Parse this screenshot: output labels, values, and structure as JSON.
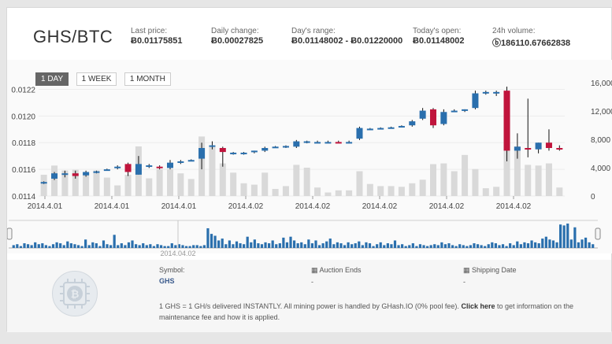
{
  "header": {
    "pair": "GHS/BTC",
    "stats": [
      {
        "label": "Last price:",
        "value": "Ƀ0.01175851"
      },
      {
        "label": "Daily change:",
        "value": "Ƀ0.00027825"
      },
      {
        "label": "Day's range:",
        "value": "Ƀ0.01148002 - Ƀ0.01220000"
      },
      {
        "label": "Today's open:",
        "value": "Ƀ0.01148002"
      },
      {
        "label": "24h volume:",
        "value": "ⓑ186110.67662838"
      }
    ]
  },
  "tabs": [
    "1 DAY",
    "1 WEEK",
    "1 MONTH"
  ],
  "active_tab": "1 DAY",
  "chart_data": {
    "type": "candlestick",
    "price_axis_ticks": [
      "0.0114",
      "0.0116",
      "0.0118",
      "0.0120",
      "0.0122"
    ],
    "price_ylim": [
      0.0114,
      0.01225
    ],
    "volume_axis_ticks": [
      "0",
      "4,000",
      "8,000",
      "12,000",
      "16,000"
    ],
    "volume_ylim": [
      0,
      16000
    ],
    "x_tick_labels": [
      "2014.4.01",
      "2014.4.01",
      "2014.4.01",
      "2014.4.02",
      "2014.4.02",
      "2014.4.02",
      "2014.4.02",
      "2014.4.02"
    ],
    "candles": [
      {
        "o": 0.0115,
        "h": 0.01151,
        "l": 0.01149,
        "c": 0.011505,
        "v": 3000
      },
      {
        "o": 0.01153,
        "h": 0.01158,
        "l": 0.01152,
        "c": 0.01157,
        "v": 4300
      },
      {
        "o": 0.01156,
        "h": 0.01159,
        "l": 0.01154,
        "c": 0.01157,
        "v": 3600
      },
      {
        "o": 0.01157,
        "h": 0.01159,
        "l": 0.01153,
        "c": 0.01155,
        "v": 3700
      },
      {
        "o": 0.011555,
        "h": 0.01159,
        "l": 0.011545,
        "c": 0.01158,
        "v": 3200
      },
      {
        "o": 0.01158,
        "h": 0.01159,
        "l": 0.01157,
        "c": 0.011585,
        "v": 3600
      },
      {
        "o": 0.011595,
        "h": 0.011605,
        "l": 0.01159,
        "c": 0.0116,
        "v": 2600
      },
      {
        "o": 0.01161,
        "h": 0.01163,
        "l": 0.0116,
        "c": 0.01162,
        "v": 1500
      },
      {
        "o": 0.01164,
        "h": 0.01165,
        "l": 0.01155,
        "c": 0.01158,
        "v": 3000
      },
      {
        "o": 0.01156,
        "h": 0.0117,
        "l": 0.01156,
        "c": 0.01164,
        "v": 7000
      },
      {
        "o": 0.01163,
        "h": 0.01164,
        "l": 0.01161,
        "c": 0.01163,
        "v": 2500
      },
      {
        "o": 0.01162,
        "h": 0.01163,
        "l": 0.0116,
        "c": 0.01161,
        "v": 3800
      },
      {
        "o": 0.01161,
        "h": 0.01167,
        "l": 0.0116,
        "c": 0.01165,
        "v": 3800
      },
      {
        "o": 0.01165,
        "h": 0.01167,
        "l": 0.01164,
        "c": 0.01166,
        "v": 3200
      },
      {
        "o": 0.011665,
        "h": 0.011675,
        "l": 0.01166,
        "c": 0.01167,
        "v": 2400
      },
      {
        "o": 0.01168,
        "h": 0.0118,
        "l": 0.0116,
        "c": 0.01176,
        "v": 8400
      },
      {
        "o": 0.01177,
        "h": 0.01181,
        "l": 0.01175,
        "c": 0.01178,
        "v": 6900
      },
      {
        "o": 0.01176,
        "h": 0.01177,
        "l": 0.01162,
        "c": 0.01173,
        "v": 4600
      },
      {
        "o": 0.01172,
        "h": 0.01173,
        "l": 0.01171,
        "c": 0.011725,
        "v": 3300
      },
      {
        "o": 0.01172,
        "h": 0.01173,
        "l": 0.01171,
        "c": 0.011725,
        "v": 1800
      },
      {
        "o": 0.01173,
        "h": 0.01174,
        "l": 0.01172,
        "c": 0.01174,
        "v": 1600
      },
      {
        "o": 0.01174,
        "h": 0.01177,
        "l": 0.01173,
        "c": 0.01176,
        "v": 3300
      },
      {
        "o": 0.011765,
        "h": 0.011775,
        "l": 0.01176,
        "c": 0.01177,
        "v": 1000
      },
      {
        "o": 0.01177,
        "h": 0.01178,
        "l": 0.01176,
        "c": 0.011775,
        "v": 1400
      },
      {
        "o": 0.01177,
        "h": 0.01182,
        "l": 0.01176,
        "c": 0.01181,
        "v": 4400
      },
      {
        "o": 0.0118,
        "h": 0.011815,
        "l": 0.011795,
        "c": 0.01181,
        "v": 4000
      },
      {
        "o": 0.011805,
        "h": 0.011815,
        "l": 0.0118,
        "c": 0.011805,
        "v": 1200
      },
      {
        "o": 0.011805,
        "h": 0.011815,
        "l": 0.0118,
        "c": 0.011805,
        "v": 500
      },
      {
        "o": 0.011805,
        "h": 0.011815,
        "l": 0.0118,
        "c": 0.0118,
        "v": 800
      },
      {
        "o": 0.0118,
        "h": 0.011815,
        "l": 0.011795,
        "c": 0.011805,
        "v": 800
      },
      {
        "o": 0.01183,
        "h": 0.01192,
        "l": 0.01182,
        "c": 0.01191,
        "v": 3500
      },
      {
        "o": 0.0119,
        "h": 0.01191,
        "l": 0.011895,
        "c": 0.011905,
        "v": 1700
      },
      {
        "o": 0.011905,
        "h": 0.011915,
        "l": 0.0119,
        "c": 0.01191,
        "v": 1400
      },
      {
        "o": 0.01191,
        "h": 0.01192,
        "l": 0.011905,
        "c": 0.011915,
        "v": 1400
      },
      {
        "o": 0.01192,
        "h": 0.01193,
        "l": 0.011915,
        "c": 0.011925,
        "v": 1300
      },
      {
        "o": 0.01193,
        "h": 0.01197,
        "l": 0.01192,
        "c": 0.01196,
        "v": 1800
      },
      {
        "o": 0.01198,
        "h": 0.01206,
        "l": 0.01197,
        "c": 0.01204,
        "v": 2300
      },
      {
        "o": 0.01205,
        "h": 0.01206,
        "l": 0.01191,
        "c": 0.01193,
        "v": 4500
      },
      {
        "o": 0.01194,
        "h": 0.01205,
        "l": 0.01193,
        "c": 0.01203,
        "v": 4600
      },
      {
        "o": 0.01204,
        "h": 0.01205,
        "l": 0.01203,
        "c": 0.01204,
        "v": 3500
      },
      {
        "o": 0.01204,
        "h": 0.01205,
        "l": 0.01203,
        "c": 0.01205,
        "v": 5800
      },
      {
        "o": 0.01206,
        "h": 0.01219,
        "l": 0.01205,
        "c": 0.01217,
        "v": 3800
      },
      {
        "o": 0.01217,
        "h": 0.01219,
        "l": 0.01216,
        "c": 0.01218,
        "v": 1100
      },
      {
        "o": 0.01217,
        "h": 0.01219,
        "l": 0.01215,
        "c": 0.01218,
        "v": 1300
      },
      {
        "o": 0.01219,
        "h": 0.01222,
        "l": 0.01166,
        "c": 0.01174,
        "v": 11000
      },
      {
        "o": 0.01174,
        "h": 0.01187,
        "l": 0.01168,
        "c": 0.01177,
        "v": 7000
      },
      {
        "o": 0.01176,
        "h": 0.01213,
        "l": 0.01169,
        "c": 0.01175,
        "v": 4400
      },
      {
        "o": 0.01175,
        "h": 0.0118,
        "l": 0.01172,
        "c": 0.0118,
        "v": 4300
      },
      {
        "o": 0.0118,
        "h": 0.0119,
        "l": 0.01174,
        "c": 0.01176,
        "v": 4600
      },
      {
        "o": 0.01176,
        "h": 0.01178,
        "l": 0.01174,
        "c": 0.01175,
        "v": 1200
      }
    ],
    "navigator_date_label": "2014.04.02",
    "navigator_volumes": [
      3,
      4,
      2,
      5,
      4,
      3,
      6,
      4,
      5,
      3,
      2,
      4,
      6,
      5,
      3,
      7,
      5,
      4,
      3,
      2,
      9,
      3,
      6,
      5,
      2,
      8,
      4,
      3,
      14,
      3,
      5,
      3,
      6,
      8,
      4,
      3,
      5,
      3,
      4,
      2,
      4,
      3,
      2,
      2,
      5,
      3,
      4,
      3,
      2,
      2,
      3,
      3,
      2,
      3,
      21,
      15,
      13,
      8,
      10,
      4,
      8,
      4,
      7,
      5,
      4,
      12,
      6,
      9,
      5,
      4,
      6,
      5,
      8,
      4,
      5,
      11,
      6,
      12,
      8,
      5,
      6,
      4,
      9,
      5,
      8,
      3,
      5,
      7,
      10,
      4,
      6,
      5,
      3,
      6,
      4,
      5,
      7,
      3,
      6,
      5,
      2,
      4,
      6,
      3,
      5,
      4,
      8,
      3,
      4,
      2,
      3,
      5,
      2,
      4,
      3,
      2,
      3,
      4,
      3,
      6,
      4,
      5,
      3,
      2,
      4,
      3,
      2,
      3,
      5,
      4,
      3,
      2,
      4,
      6,
      5,
      3,
      4,
      2,
      5,
      3,
      7,
      4,
      6,
      5,
      8,
      6,
      5,
      10,
      12,
      9,
      8,
      6,
      25,
      24,
      26,
      9,
      22,
      6,
      9,
      11,
      6,
      4
    ]
  },
  "info": {
    "symbol_label": "Symbol:",
    "symbol_value": "GHS",
    "auction_label": "Auction Ends",
    "auction_value": "-",
    "shipping_label": "Shipping Date",
    "shipping_value": "-",
    "desc_pre": "1 GHS = 1 GH/s delivered INSTANTLY. All mining power is handled by GHash.IO (0% pool fee).",
    "desc_link": "Click here",
    "desc_post": "to get information on the maintenance fee and how it is applied."
  },
  "colors": {
    "up": "#2a6fad",
    "down": "#c0143c",
    "volume": "#d9d9d9",
    "nav_bar": "#2a6fad"
  }
}
